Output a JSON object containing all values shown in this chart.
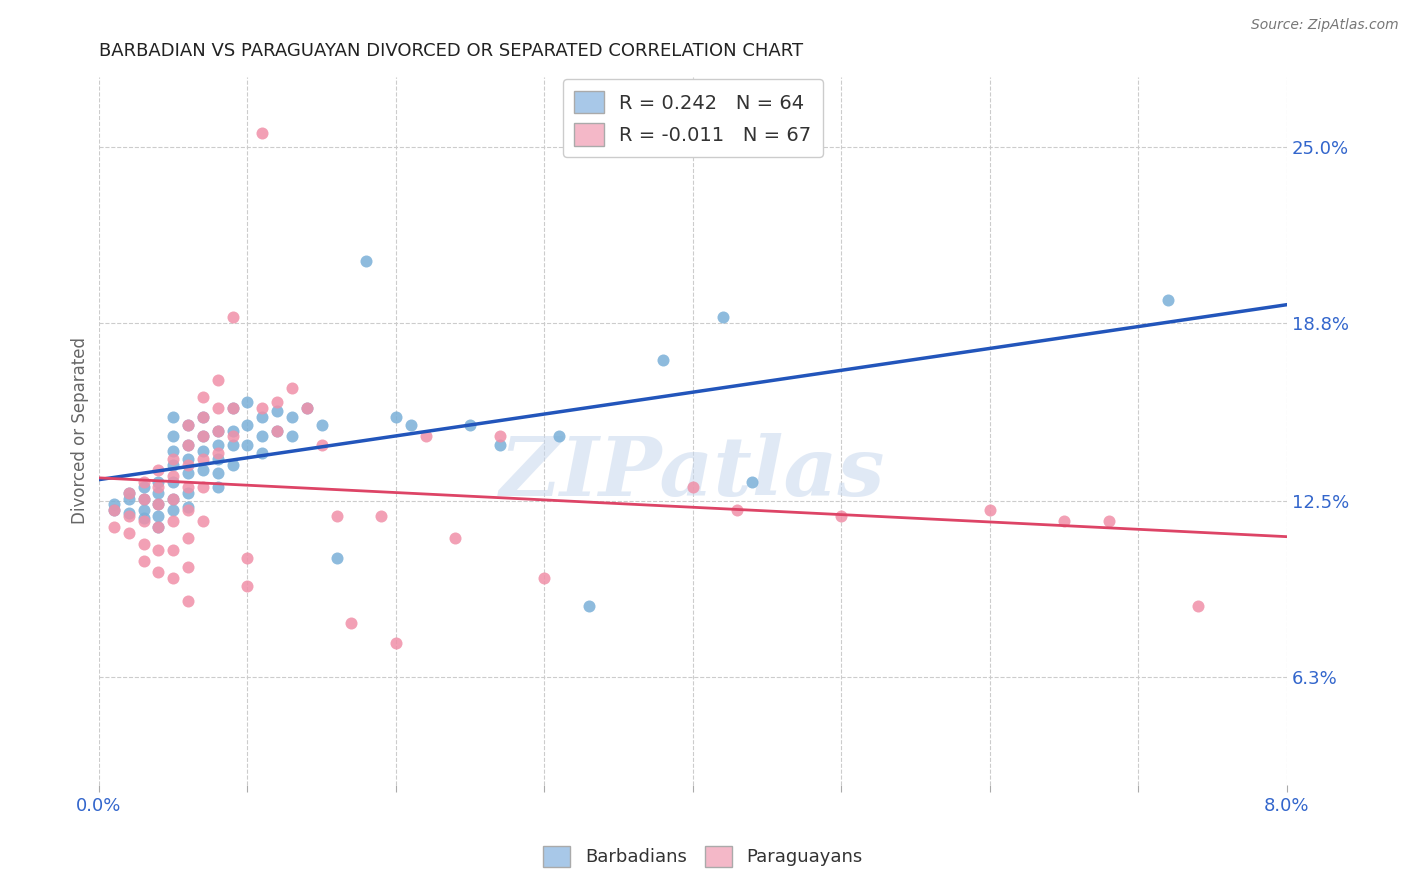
{
  "title": "BARBADIAN VS PARAGUAYAN DIVORCED OR SEPARATED CORRELATION CHART",
  "source": "Source: ZipAtlas.com",
  "ylabel": "Divorced or Separated",
  "ytick_labels": [
    "6.3%",
    "12.5%",
    "18.8%",
    "25.0%"
  ],
  "ytick_values": [
    0.063,
    0.125,
    0.188,
    0.25
  ],
  "xlim": [
    0.0,
    0.08
  ],
  "ylim": [
    0.025,
    0.275
  ],
  "legend_blue_label": "R = 0.242   N = 64",
  "legend_pink_label": "R = -0.011   N = 67",
  "legend_blue_color": "#a8c8e8",
  "legend_pink_color": "#f4b8c8",
  "barbadians_color": "#7ab0d8",
  "paraguayans_color": "#f090a8",
  "trendline_blue": "#2255bb",
  "trendline_pink": "#dd4466",
  "watermark": "ZIPatlas",
  "barbadians": [
    [
      0.001,
      0.124
    ],
    [
      0.001,
      0.122
    ],
    [
      0.002,
      0.126
    ],
    [
      0.002,
      0.128
    ],
    [
      0.002,
      0.121
    ],
    [
      0.003,
      0.13
    ],
    [
      0.003,
      0.126
    ],
    [
      0.003,
      0.122
    ],
    [
      0.003,
      0.119
    ],
    [
      0.004,
      0.132
    ],
    [
      0.004,
      0.128
    ],
    [
      0.004,
      0.124
    ],
    [
      0.004,
      0.12
    ],
    [
      0.004,
      0.116
    ],
    [
      0.005,
      0.155
    ],
    [
      0.005,
      0.148
    ],
    [
      0.005,
      0.143
    ],
    [
      0.005,
      0.138
    ],
    [
      0.005,
      0.132
    ],
    [
      0.005,
      0.126
    ],
    [
      0.005,
      0.122
    ],
    [
      0.006,
      0.152
    ],
    [
      0.006,
      0.145
    ],
    [
      0.006,
      0.14
    ],
    [
      0.006,
      0.135
    ],
    [
      0.006,
      0.128
    ],
    [
      0.006,
      0.123
    ],
    [
      0.007,
      0.155
    ],
    [
      0.007,
      0.148
    ],
    [
      0.007,
      0.143
    ],
    [
      0.007,
      0.136
    ],
    [
      0.008,
      0.15
    ],
    [
      0.008,
      0.145
    ],
    [
      0.008,
      0.14
    ],
    [
      0.008,
      0.135
    ],
    [
      0.008,
      0.13
    ],
    [
      0.009,
      0.158
    ],
    [
      0.009,
      0.15
    ],
    [
      0.009,
      0.145
    ],
    [
      0.009,
      0.138
    ],
    [
      0.01,
      0.16
    ],
    [
      0.01,
      0.152
    ],
    [
      0.01,
      0.145
    ],
    [
      0.011,
      0.155
    ],
    [
      0.011,
      0.148
    ],
    [
      0.011,
      0.142
    ],
    [
      0.012,
      0.157
    ],
    [
      0.012,
      0.15
    ],
    [
      0.013,
      0.155
    ],
    [
      0.013,
      0.148
    ],
    [
      0.014,
      0.158
    ],
    [
      0.015,
      0.152
    ],
    [
      0.016,
      0.105
    ],
    [
      0.018,
      0.21
    ],
    [
      0.02,
      0.155
    ],
    [
      0.021,
      0.152
    ],
    [
      0.025,
      0.152
    ],
    [
      0.027,
      0.145
    ],
    [
      0.031,
      0.148
    ],
    [
      0.033,
      0.088
    ],
    [
      0.038,
      0.175
    ],
    [
      0.042,
      0.19
    ],
    [
      0.072,
      0.196
    ],
    [
      0.044,
      0.132
    ]
  ],
  "paraguayans": [
    [
      0.001,
      0.122
    ],
    [
      0.001,
      0.116
    ],
    [
      0.002,
      0.128
    ],
    [
      0.002,
      0.12
    ],
    [
      0.002,
      0.114
    ],
    [
      0.003,
      0.132
    ],
    [
      0.003,
      0.126
    ],
    [
      0.003,
      0.118
    ],
    [
      0.003,
      0.11
    ],
    [
      0.003,
      0.104
    ],
    [
      0.004,
      0.136
    ],
    [
      0.004,
      0.13
    ],
    [
      0.004,
      0.124
    ],
    [
      0.004,
      0.116
    ],
    [
      0.004,
      0.108
    ],
    [
      0.004,
      0.1
    ],
    [
      0.005,
      0.14
    ],
    [
      0.005,
      0.134
    ],
    [
      0.005,
      0.126
    ],
    [
      0.005,
      0.118
    ],
    [
      0.005,
      0.108
    ],
    [
      0.005,
      0.098
    ],
    [
      0.006,
      0.152
    ],
    [
      0.006,
      0.145
    ],
    [
      0.006,
      0.138
    ],
    [
      0.006,
      0.13
    ],
    [
      0.006,
      0.122
    ],
    [
      0.006,
      0.112
    ],
    [
      0.006,
      0.102
    ],
    [
      0.006,
      0.09
    ],
    [
      0.007,
      0.162
    ],
    [
      0.007,
      0.155
    ],
    [
      0.007,
      0.148
    ],
    [
      0.007,
      0.14
    ],
    [
      0.007,
      0.13
    ],
    [
      0.007,
      0.118
    ],
    [
      0.008,
      0.168
    ],
    [
      0.008,
      0.158
    ],
    [
      0.008,
      0.15
    ],
    [
      0.008,
      0.142
    ],
    [
      0.009,
      0.19
    ],
    [
      0.009,
      0.158
    ],
    [
      0.009,
      0.148
    ],
    [
      0.01,
      0.105
    ],
    [
      0.01,
      0.095
    ],
    [
      0.011,
      0.255
    ],
    [
      0.011,
      0.158
    ],
    [
      0.012,
      0.16
    ],
    [
      0.012,
      0.15
    ],
    [
      0.013,
      0.165
    ],
    [
      0.014,
      0.158
    ],
    [
      0.015,
      0.145
    ],
    [
      0.016,
      0.12
    ],
    [
      0.017,
      0.082
    ],
    [
      0.019,
      0.12
    ],
    [
      0.02,
      0.075
    ],
    [
      0.022,
      0.148
    ],
    [
      0.024,
      0.112
    ],
    [
      0.027,
      0.148
    ],
    [
      0.03,
      0.098
    ],
    [
      0.04,
      0.13
    ],
    [
      0.043,
      0.122
    ],
    [
      0.05,
      0.12
    ],
    [
      0.06,
      0.122
    ],
    [
      0.065,
      0.118
    ],
    [
      0.068,
      0.118
    ],
    [
      0.074,
      0.088
    ]
  ]
}
